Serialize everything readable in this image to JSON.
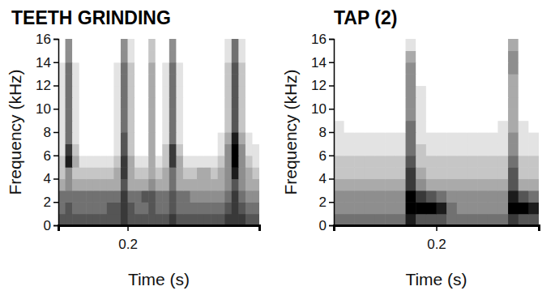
{
  "chart_data": [
    {
      "type": "heatmap",
      "title": "TEETH GRINDING",
      "x_label": "Time (s)",
      "y_label": "Frequency (kHz)",
      "xlim": [
        0.1,
        0.39
      ],
      "ylim": [
        0,
        16
      ],
      "xticks": [
        0.2
      ],
      "yticks": [
        0,
        2,
        4,
        6,
        8,
        10,
        12,
        14,
        16
      ],
      "color": "#000000",
      "zlim": [
        0,
        9
      ],
      "x_bins": [
        0.1,
        0.11,
        0.12,
        0.13,
        0.14,
        0.15,
        0.16,
        0.17,
        0.18,
        0.19,
        0.2,
        0.21,
        0.22,
        0.23,
        0.24,
        0.25,
        0.26,
        0.27,
        0.28,
        0.29,
        0.3,
        0.31,
        0.32,
        0.33,
        0.34,
        0.35,
        0.36,
        0.37,
        0.38,
        0.39
      ],
      "y_bins": [
        0,
        1,
        2,
        3,
        4,
        5,
        6,
        7,
        8,
        9,
        10,
        11,
        12,
        13,
        14,
        15,
        16
      ],
      "cells": [
        [
          6,
          6,
          6,
          6,
          6,
          6,
          6,
          6,
          6,
          7,
          6,
          6,
          6,
          6,
          6,
          6,
          7,
          6,
          6,
          6,
          6,
          6,
          6,
          6,
          7,
          7,
          7,
          6,
          6
        ],
        [
          5,
          6,
          5,
          5,
          5,
          5,
          5,
          6,
          6,
          7,
          6,
          5,
          5,
          6,
          5,
          5,
          6,
          5,
          5,
          5,
          5,
          5,
          5,
          5,
          6,
          7,
          6,
          5,
          5
        ],
        [
          5,
          5,
          5,
          5,
          5,
          5,
          5,
          5,
          5,
          7,
          5,
          5,
          6,
          6,
          5,
          5,
          6,
          5,
          5,
          4,
          4,
          4,
          4,
          4,
          5,
          7,
          5,
          4,
          4
        ],
        [
          3,
          4,
          3,
          3,
          3,
          3,
          3,
          3,
          3,
          6,
          3,
          3,
          3,
          4,
          3,
          3,
          5,
          3,
          3,
          3,
          3,
          3,
          3,
          3,
          4,
          6,
          4,
          3,
          3
        ],
        [
          2,
          4,
          2,
          2,
          2,
          2,
          2,
          2,
          3,
          7,
          3,
          2,
          2,
          3,
          2,
          3,
          5,
          3,
          2,
          2,
          3,
          3,
          2,
          3,
          4,
          8,
          4,
          3,
          2
        ],
        [
          2,
          8,
          3,
          1,
          1,
          1,
          1,
          1,
          2,
          7,
          3,
          1,
          1,
          3,
          1,
          2,
          7,
          3,
          1,
          1,
          1,
          1,
          1,
          2,
          4,
          9,
          4,
          2,
          1
        ],
        [
          1,
          7,
          2,
          0,
          0,
          0,
          0,
          0,
          1,
          6,
          2,
          0,
          0,
          3,
          0,
          2,
          7,
          2,
          0,
          0,
          0,
          0,
          0,
          1,
          4,
          9,
          4,
          1,
          1
        ],
        [
          1,
          5,
          1,
          0,
          0,
          0,
          0,
          0,
          1,
          6,
          2,
          0,
          0,
          3,
          0,
          1,
          5,
          1,
          0,
          0,
          0,
          0,
          0,
          1,
          3,
          8,
          3,
          1,
          0
        ],
        [
          1,
          5,
          1,
          0,
          0,
          0,
          0,
          0,
          1,
          5,
          2,
          0,
          0,
          3,
          0,
          1,
          5,
          1,
          0,
          0,
          0,
          0,
          0,
          0,
          2,
          6,
          2,
          0,
          0
        ],
        [
          1,
          5,
          1,
          0,
          0,
          0,
          0,
          0,
          1,
          5,
          2,
          0,
          0,
          3,
          0,
          1,
          5,
          1,
          0,
          0,
          0,
          0,
          0,
          0,
          2,
          6,
          2,
          0,
          0
        ],
        [
          1,
          5,
          1,
          0,
          0,
          0,
          0,
          0,
          1,
          5,
          2,
          0,
          0,
          3,
          0,
          1,
          5,
          1,
          0,
          0,
          0,
          0,
          0,
          0,
          2,
          6,
          2,
          0,
          0
        ],
        [
          1,
          5,
          1,
          0,
          0,
          0,
          0,
          0,
          1,
          5,
          2,
          0,
          0,
          3,
          0,
          1,
          5,
          1,
          0,
          0,
          0,
          0,
          0,
          0,
          2,
          6,
          2,
          0,
          0
        ],
        [
          1,
          5,
          1,
          0,
          0,
          0,
          0,
          0,
          1,
          5,
          2,
          0,
          0,
          3,
          0,
          1,
          5,
          1,
          0,
          0,
          0,
          0,
          0,
          0,
          2,
          6,
          2,
          0,
          0
        ],
        [
          1,
          5,
          1,
          0,
          0,
          0,
          0,
          0,
          1,
          5,
          2,
          0,
          0,
          3,
          0,
          1,
          5,
          1,
          0,
          0,
          0,
          0,
          0,
          0,
          2,
          6,
          2,
          0,
          0
        ],
        [
          0,
          4,
          0,
          0,
          0,
          0,
          0,
          0,
          0,
          4,
          1,
          0,
          0,
          2,
          0,
          0,
          4,
          0,
          0,
          0,
          0,
          0,
          0,
          0,
          1,
          5,
          1,
          0,
          0
        ],
        [
          0,
          4,
          0,
          0,
          0,
          0,
          0,
          0,
          0,
          4,
          1,
          0,
          0,
          2,
          0,
          0,
          4,
          0,
          0,
          0,
          0,
          0,
          0,
          0,
          1,
          5,
          1,
          0,
          0
        ]
      ]
    },
    {
      "type": "heatmap",
      "title": "TAP (2)",
      "x_label": "Time (s)",
      "y_label": "Frequency (kHz)",
      "xlim": [
        0.1,
        0.3
      ],
      "ylim": [
        0,
        16
      ],
      "xticks": [
        0.2
      ],
      "yticks": [
        0,
        2,
        4,
        6,
        8,
        10,
        12,
        14,
        16
      ],
      "color": "#000000",
      "zlim": [
        0,
        9
      ],
      "x_bins": [
        0.1,
        0.11,
        0.12,
        0.13,
        0.14,
        0.15,
        0.16,
        0.17,
        0.18,
        0.19,
        0.2,
        0.21,
        0.22,
        0.23,
        0.24,
        0.25,
        0.26,
        0.27,
        0.28,
        0.29,
        0.3
      ],
      "y_bins": [
        0,
        1,
        2,
        3,
        4,
        5,
        6,
        7,
        8,
        9,
        10,
        11,
        12,
        13,
        14,
        15,
        16
      ],
      "cells": [
        [
          5,
          5,
          5,
          5,
          5,
          5,
          5,
          8,
          6,
          6,
          6,
          5,
          5,
          5,
          5,
          5,
          5,
          7,
          6,
          6
        ],
        [
          4,
          4,
          4,
          4,
          4,
          4,
          4,
          9,
          9,
          9,
          8,
          5,
          4,
          4,
          4,
          4,
          4,
          9,
          9,
          8
        ],
        [
          4,
          4,
          4,
          4,
          4,
          4,
          4,
          9,
          7,
          6,
          5,
          4,
          4,
          4,
          4,
          4,
          4,
          8,
          6,
          5
        ],
        [
          3,
          3,
          3,
          3,
          3,
          3,
          3,
          7,
          4,
          3,
          3,
          3,
          3,
          3,
          3,
          3,
          3,
          6,
          3,
          3
        ],
        [
          2,
          2,
          2,
          2,
          2,
          2,
          2,
          7,
          3,
          2,
          2,
          2,
          2,
          2,
          2,
          2,
          2,
          6,
          2,
          2
        ],
        [
          2,
          2,
          2,
          2,
          2,
          2,
          2,
          6,
          2,
          2,
          2,
          2,
          2,
          2,
          2,
          2,
          2,
          5,
          2,
          2
        ],
        [
          1,
          1,
          1,
          1,
          1,
          1,
          1,
          5,
          2,
          1,
          1,
          1,
          1,
          1,
          1,
          1,
          1,
          4,
          1,
          1
        ],
        [
          1,
          1,
          1,
          1,
          1,
          1,
          1,
          5,
          1,
          1,
          1,
          1,
          1,
          1,
          1,
          1,
          1,
          4,
          1,
          1
        ],
        [
          1,
          0,
          0,
          0,
          0,
          0,
          0,
          5,
          1,
          0,
          0,
          0,
          0,
          0,
          0,
          0,
          1,
          3,
          1,
          0
        ],
        [
          0,
          0,
          0,
          0,
          0,
          0,
          0,
          4,
          1,
          0,
          0,
          0,
          0,
          0,
          0,
          0,
          0,
          3,
          0,
          0
        ],
        [
          0,
          0,
          0,
          0,
          0,
          0,
          0,
          4,
          1,
          0,
          0,
          0,
          0,
          0,
          0,
          0,
          0,
          3,
          0,
          0
        ],
        [
          0,
          0,
          0,
          0,
          0,
          0,
          0,
          4,
          1,
          0,
          0,
          0,
          0,
          0,
          0,
          0,
          0,
          3,
          0,
          0
        ],
        [
          0,
          0,
          0,
          0,
          0,
          0,
          0,
          4,
          0,
          0,
          0,
          0,
          0,
          0,
          0,
          0,
          0,
          3,
          0,
          0
        ],
        [
          0,
          0,
          0,
          0,
          0,
          0,
          0,
          4,
          0,
          0,
          0,
          0,
          0,
          0,
          0,
          0,
          0,
          4,
          0,
          0
        ],
        [
          0,
          0,
          0,
          0,
          0,
          0,
          0,
          3,
          0,
          0,
          0,
          0,
          0,
          0,
          0,
          0,
          0,
          4,
          0,
          0
        ],
        [
          0,
          0,
          0,
          0,
          0,
          0,
          0,
          1,
          0,
          0,
          0,
          0,
          0,
          0,
          0,
          0,
          0,
          3,
          0,
          0
        ]
      ]
    }
  ]
}
